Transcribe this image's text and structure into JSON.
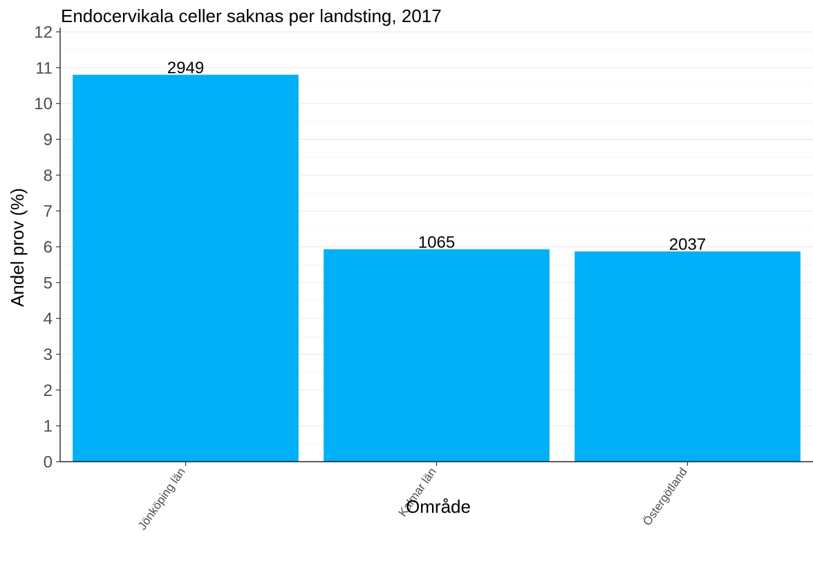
{
  "chart_data": {
    "type": "bar",
    "title": "Endocervikala celler saknas per landsting, 2017",
    "xlabel": "Område",
    "ylabel": "Andel prov (%)",
    "categories": [
      "Jönköping län",
      "Kalmar län",
      "Östergötland"
    ],
    "values": [
      10.8,
      5.93,
      5.87
    ],
    "data_labels": [
      "2949",
      "1065",
      "2037"
    ],
    "ylim": [
      0,
      12
    ],
    "yticks": [
      0,
      1,
      2,
      3,
      4,
      5,
      6,
      7,
      8,
      9,
      10,
      11,
      12
    ],
    "bar_color": "#00b0f6",
    "grid": true
  }
}
